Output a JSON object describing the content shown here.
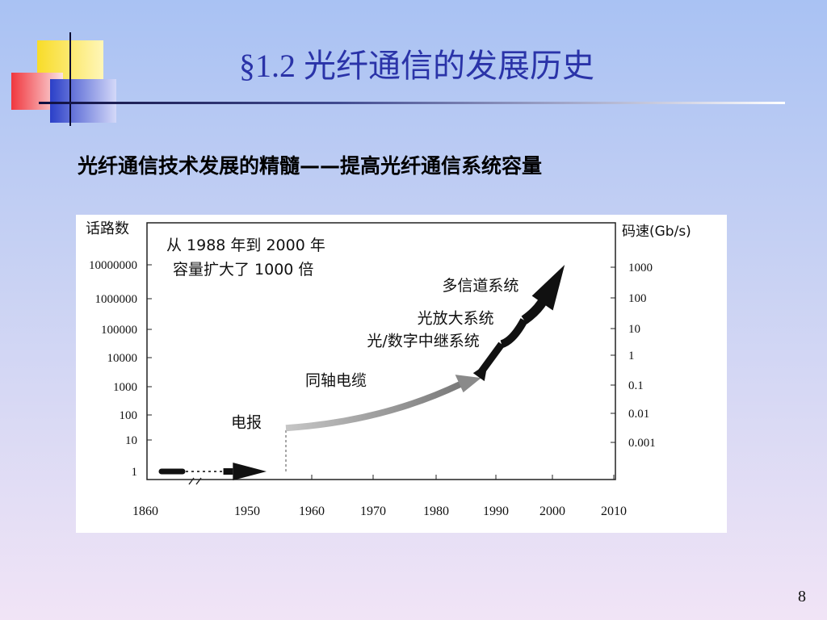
{
  "slide": {
    "title": "§1.2 光纤通信的发展历史",
    "subtitle": "光纤通信技术发展的精髓——提高光纤通信系统容量",
    "page_number": "8"
  },
  "chart_data": {
    "type": "line",
    "left_axis_label": "话路数",
    "right_axis_label": "码速(Gb/s)",
    "left_ticks": [
      "1",
      "10",
      "100",
      "1000",
      "10000",
      "100000",
      "1000000",
      "10000000"
    ],
    "right_ticks": [
      "0.001",
      "0.01",
      "0.1",
      "1",
      "10",
      "100",
      "1000"
    ],
    "x_ticks": [
      "1860",
      "1950",
      "1960",
      "1970",
      "1980",
      "1990",
      "2000",
      "2010"
    ],
    "annotation_lines": [
      "从 1988 年到 2000 年",
      "容量扩大了 1000 倍"
    ],
    "stages": [
      {
        "label": "电报",
        "from_year": 1860,
        "to_year": 1956,
        "value": 1
      },
      {
        "label": "同轴电缆",
        "from_year": 1956,
        "to_year": 1987,
        "value_start": 30,
        "value_end": 2000
      },
      {
        "label": "光/数字中继系统",
        "from_year": 1987,
        "to_year": 1991,
        "value_start": 2000,
        "value_end": 30000
      },
      {
        "label": "光放大系统",
        "from_year": 1991,
        "to_year": 1995,
        "value_start": 30000,
        "value_end": 200000
      },
      {
        "label": "多信道系统",
        "from_year": 1995,
        "to_year": 2002,
        "value_start": 200000,
        "value_end": 10000000
      }
    ]
  }
}
